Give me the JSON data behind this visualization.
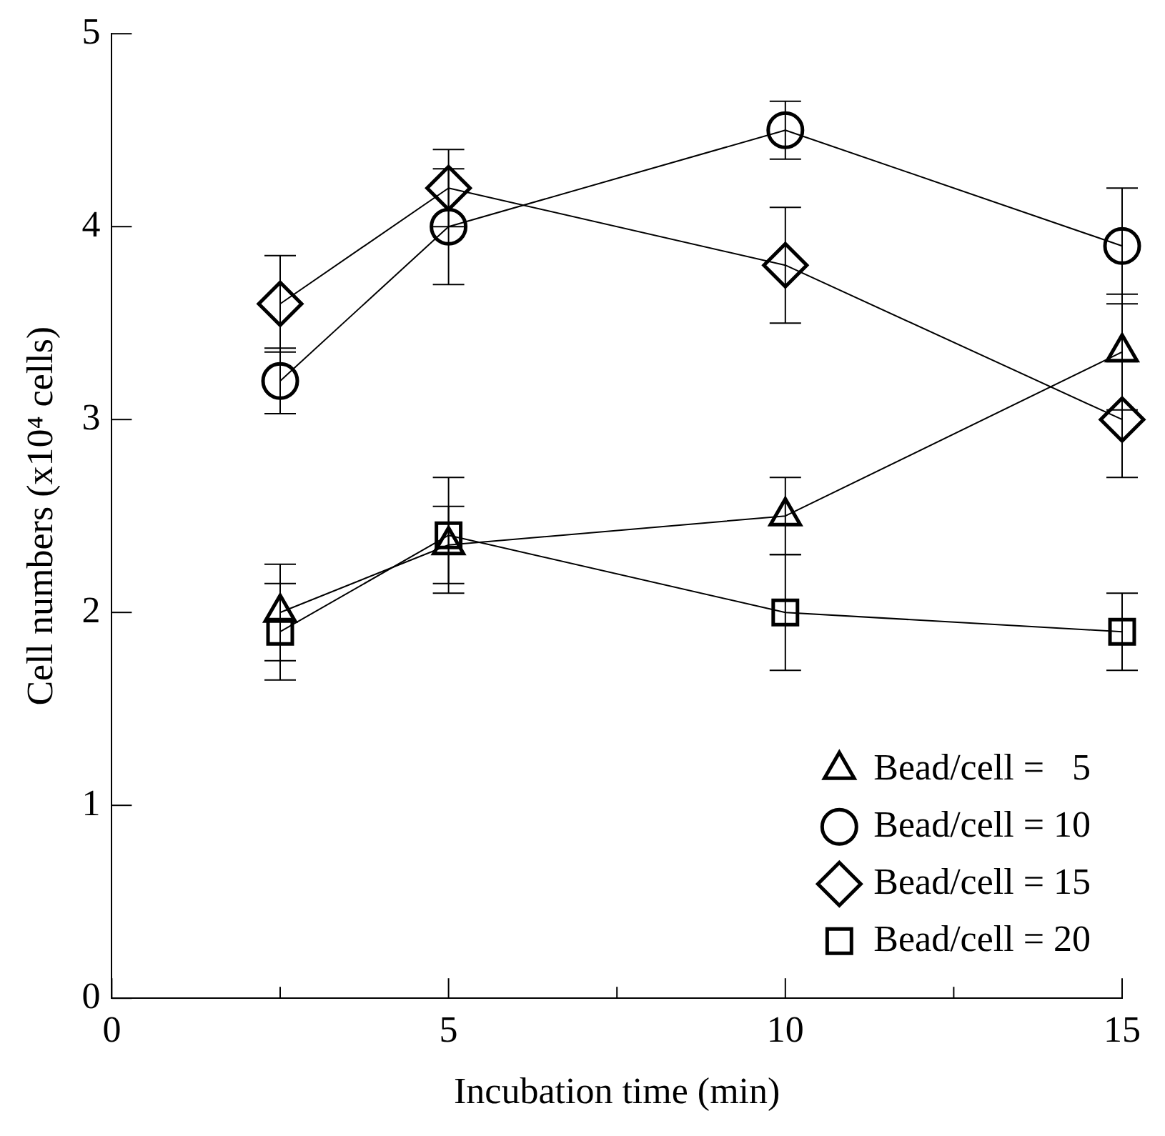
{
  "chart_data": {
    "type": "line",
    "xlabel": "Incubation time (min)",
    "ylabel": "Cell numbers (x10⁴ cells)",
    "xlim": [
      0,
      15
    ],
    "xticks": [
      0,
      {
        "value": 2.5,
        "label": null
      },
      5,
      {
        "value": 7.5,
        "label": null
      },
      10,
      {
        "value": 12.5,
        "label": null
      },
      15
    ],
    "ylim": [
      0,
      5
    ],
    "yticks": [
      0,
      1,
      2,
      3,
      4,
      5
    ],
    "grid": false,
    "legend": "bottom right",
    "line_style": "solid",
    "x": [
      2.5,
      5,
      10,
      15
    ],
    "series": [
      {
        "name": "Bead/cell =   5",
        "color": "#000000",
        "marker": "triangle",
        "values": [
          2.0,
          2.35,
          2.5,
          3.35
        ],
        "errors": [
          0.25,
          0.2,
          0.2,
          0.3
        ]
      },
      {
        "name": "Bead/cell = 10",
        "color": "#000000",
        "marker": "circle",
        "values": [
          3.2,
          4.0,
          4.5,
          3.9
        ],
        "errors": [
          0.17,
          0.3,
          0.15,
          0.3
        ]
      },
      {
        "name": "Bead/cell = 15",
        "color": "#000000",
        "marker": "diamond",
        "values": [
          3.6,
          4.2,
          3.8,
          3.0
        ],
        "errors": [
          0.25,
          0.2,
          0.3,
          0.3
        ]
      },
      {
        "name": "Bead/cell = 20",
        "color": "#000000",
        "marker": "square",
        "values": [
          1.9,
          2.4,
          2.0,
          1.9
        ],
        "errors": [
          0.25,
          0.3,
          0.3,
          0.2
        ]
      }
    ]
  }
}
